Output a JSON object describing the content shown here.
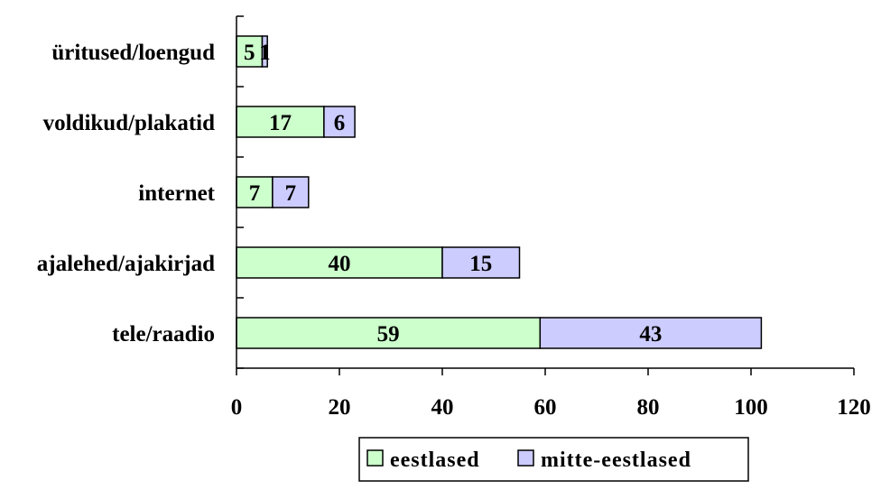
{
  "chart_data": {
    "type": "bar",
    "orientation": "horizontal",
    "stacked": true,
    "categories": [
      "üritused/loengud",
      "voldikud/plakatid",
      "internet",
      "ajalehed/ajakirjad",
      "tele/raadio"
    ],
    "series": [
      {
        "name": "eestlased",
        "values": [
          5,
          17,
          7,
          40,
          59
        ],
        "color": "#ccffcc"
      },
      {
        "name": "mitte-eestlased",
        "values": [
          1,
          6,
          7,
          15,
          43
        ],
        "color": "#ccccff"
      }
    ],
    "xlim": [
      0,
      120
    ],
    "xticks": [
      "0",
      "20",
      "40",
      "60",
      "80",
      "100",
      "120"
    ],
    "grid": false,
    "legend_position": "bottom"
  }
}
